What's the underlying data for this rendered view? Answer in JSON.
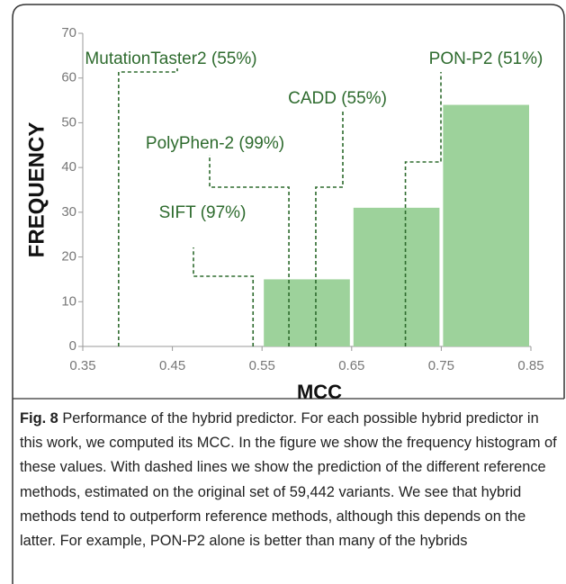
{
  "chart_data": {
    "type": "histogram",
    "bins": [
      0.55,
      0.65,
      0.75,
      0.85
    ],
    "values": [
      15,
      31,
      54
    ],
    "color": "#9dd29b",
    "xlabel": "MCC",
    "ylabel": "FREQUENCY",
    "xlim": [
      0.35,
      0.85
    ],
    "xticks": [
      0.35,
      0.45,
      0.55,
      0.65,
      0.75,
      0.85
    ],
    "ylim": [
      0,
      70
    ],
    "yticks": [
      0,
      10,
      20,
      30,
      40,
      50,
      60,
      70
    ],
    "references": [
      {
        "label": "MutationTaster2 (55%)",
        "x": 0.39
      },
      {
        "label": "PolyPhen-2 (99%)",
        "x": 0.58
      },
      {
        "label": "CADD (55%)",
        "x": 0.61
      },
      {
        "label": "SIFT (97%)",
        "x": 0.54
      },
      {
        "label": "PON-P2 (51%)",
        "x": 0.71
      }
    ],
    "reference_color": "#2e6b2e"
  },
  "caption": {
    "label": "Fig. 8",
    "text": "Performance of the hybrid predictor. For each possible hybrid predictor in this work, we computed its MCC. In the figure we show the frequency histogram of these values. With dashed lines we show the prediction of the different reference methods, estimated on the original set of 59,442 variants. We see that hybrid methods tend to outperform reference methods, although this depends on the latter. For example, PON-P2 alone is better than many of the hybrids"
  }
}
